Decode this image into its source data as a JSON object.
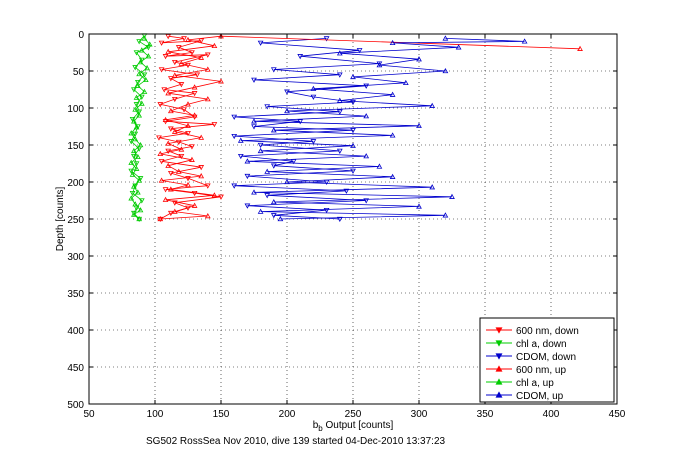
{
  "chart_data": {
    "type": "scatter",
    "title": "",
    "xlabel_main": "b",
    "xlabel_sub": "b",
    "xlabel_rest": " Output [counts]",
    "ylabel": "Depth [counts]",
    "caption": "SG502 RossSea Nov 2010, dive 139 started 04-Dec-2010 13:37:23",
    "xlim": [
      50,
      450
    ],
    "ylim": [
      0,
      500
    ],
    "y_reversed": true,
    "grid": true,
    "legend_position": "bottom-right",
    "xticks": [
      50,
      100,
      150,
      200,
      250,
      300,
      350,
      400,
      450
    ],
    "yticks": [
      0,
      50,
      100,
      150,
      200,
      250,
      300,
      350,
      400,
      450,
      500
    ],
    "xtick_labels": [
      "50",
      "100",
      "150",
      "200",
      "250",
      "300",
      "350",
      "400",
      "450"
    ],
    "ytick_labels": [
      "0",
      "50",
      "100",
      "150",
      "200",
      "250",
      "300",
      "350",
      "400",
      "450",
      "500"
    ],
    "series": [
      {
        "name": "600 nm, down",
        "color": "#ff0000",
        "marker": "triangle-down",
        "connected": true,
        "points": [
          [
            110,
            3
          ],
          [
            122,
            6
          ],
          [
            105,
            12
          ],
          [
            135,
            9
          ],
          [
            118,
            18
          ],
          [
            128,
            25
          ],
          [
            108,
            30
          ],
          [
            140,
            28
          ],
          [
            115,
            38
          ],
          [
            125,
            42
          ],
          [
            105,
            48
          ],
          [
            132,
            55
          ],
          [
            112,
            60
          ],
          [
            120,
            68
          ],
          [
            107,
            75
          ],
          [
            130,
            80
          ],
          [
            115,
            88
          ],
          [
            104,
            95
          ],
          [
            122,
            102
          ],
          [
            130,
            112
          ],
          [
            108,
            118
          ],
          [
            145,
            122
          ],
          [
            112,
            128
          ],
          [
            125,
            134
          ],
          [
            103,
            140
          ],
          [
            118,
            146
          ],
          [
            128,
            152
          ],
          [
            110,
            158
          ],
          [
            120,
            165
          ],
          [
            105,
            172
          ],
          [
            135,
            180
          ],
          [
            112,
            188
          ],
          [
            125,
            195
          ],
          [
            140,
            205
          ],
          [
            108,
            210
          ],
          [
            130,
            215
          ],
          [
            150,
            220
          ],
          [
            115,
            228
          ],
          [
            125,
            235
          ],
          [
            112,
            242
          ],
          [
            104,
            250
          ]
        ]
      },
      {
        "name": "chl a, down",
        "color": "#00cc00",
        "marker": "triangle-down",
        "connected": true,
        "points": [
          [
            92,
            2
          ],
          [
            88,
            10
          ],
          [
            95,
            18
          ],
          [
            86,
            25
          ],
          [
            90,
            35
          ],
          [
            85,
            45
          ],
          [
            92,
            55
          ],
          [
            87,
            65
          ],
          [
            84,
            75
          ],
          [
            90,
            85
          ],
          [
            86,
            95
          ],
          [
            88,
            105
          ],
          [
            83,
            115
          ],
          [
            87,
            125
          ],
          [
            85,
            135
          ],
          [
            82,
            145
          ],
          [
            88,
            155
          ],
          [
            84,
            165
          ],
          [
            86,
            175
          ],
          [
            82,
            185
          ],
          [
            89,
            195
          ],
          [
            85,
            205
          ],
          [
            83,
            215
          ],
          [
            90,
            225
          ],
          [
            86,
            235
          ],
          [
            84,
            242
          ],
          [
            88,
            250
          ]
        ]
      },
      {
        "name": "CDOM, down",
        "color": "#0000cc",
        "marker": "triangle-down",
        "connected": true,
        "points": [
          [
            230,
            6
          ],
          [
            180,
            12
          ],
          [
            255,
            22
          ],
          [
            210,
            30
          ],
          [
            270,
            40
          ],
          [
            190,
            48
          ],
          [
            240,
            55
          ],
          [
            175,
            62
          ],
          [
            260,
            70
          ],
          [
            200,
            78
          ],
          [
            220,
            85
          ],
          [
            250,
            92
          ],
          [
            185,
            98
          ],
          [
            240,
            105
          ],
          [
            160,
            112
          ],
          [
            210,
            118
          ],
          [
            175,
            125
          ],
          [
            250,
            130
          ],
          [
            160,
            138
          ],
          [
            220,
            145
          ],
          [
            180,
            150
          ],
          [
            240,
            158
          ],
          [
            165,
            165
          ],
          [
            205,
            172
          ],
          [
            190,
            178
          ],
          [
            250,
            185
          ],
          [
            170,
            192
          ],
          [
            230,
            200
          ],
          [
            160,
            205
          ],
          [
            245,
            212
          ],
          [
            185,
            218
          ],
          [
            260,
            225
          ],
          [
            170,
            232
          ],
          [
            230,
            238
          ],
          [
            190,
            245
          ],
          [
            240,
            250
          ]
        ]
      },
      {
        "name": "600 nm, up",
        "color": "#ff0000",
        "marker": "triangle-up",
        "connected": true,
        "points": [
          [
            104,
            250
          ],
          [
            140,
            246
          ],
          [
            115,
            240
          ],
          [
            130,
            232
          ],
          [
            108,
            224
          ],
          [
            145,
            218
          ],
          [
            112,
            210
          ],
          [
            125,
            204
          ],
          [
            105,
            198
          ],
          [
            135,
            192
          ],
          [
            118,
            186
          ],
          [
            110,
            178
          ],
          [
            128,
            170
          ],
          [
            104,
            162
          ],
          [
            120,
            156
          ],
          [
            110,
            148
          ],
          [
            135,
            140
          ],
          [
            115,
            132
          ],
          [
            125,
            124
          ],
          [
            108,
            116
          ],
          [
            130,
            110
          ],
          [
            112,
            104
          ],
          [
            125,
            95
          ],
          [
            140,
            88
          ],
          [
            110,
            80
          ],
          [
            130,
            72
          ],
          [
            150,
            64
          ],
          [
            115,
            56
          ],
          [
            140,
            48
          ],
          [
            120,
            40
          ],
          [
            135,
            32
          ],
          [
            110,
            24
          ],
          [
            145,
            16
          ],
          [
            125,
            8
          ],
          [
            150,
            3
          ],
          [
            422,
            20
          ]
        ]
      },
      {
        "name": "chl a, up",
        "color": "#00cc00",
        "marker": "triangle-up",
        "connected": true,
        "points": [
          [
            88,
            250
          ],
          [
            84,
            244
          ],
          [
            89,
            238
          ],
          [
            85,
            230
          ],
          [
            82,
            222
          ],
          [
            87,
            214
          ],
          [
            84,
            206
          ],
          [
            88,
            198
          ],
          [
            83,
            190
          ],
          [
            86,
            182
          ],
          [
            82,
            174
          ],
          [
            87,
            166
          ],
          [
            84,
            158
          ],
          [
            89,
            150
          ],
          [
            85,
            142
          ],
          [
            82,
            134
          ],
          [
            86,
            126
          ],
          [
            84,
            118
          ],
          [
            88,
            110
          ],
          [
            85,
            102
          ],
          [
            90,
            94
          ],
          [
            86,
            86
          ],
          [
            92,
            78
          ],
          [
            87,
            70
          ],
          [
            93,
            62
          ],
          [
            88,
            54
          ],
          [
            94,
            46
          ],
          [
            89,
            38
          ],
          [
            95,
            30
          ],
          [
            90,
            22
          ],
          [
            96,
            14
          ],
          [
            92,
            6
          ]
        ]
      },
      {
        "name": "CDOM, up",
        "color": "#0000cc",
        "marker": "triangle-up",
        "connected": true,
        "points": [
          [
            195,
            250
          ],
          [
            320,
            245
          ],
          [
            180,
            240
          ],
          [
            300,
            233
          ],
          [
            190,
            227
          ],
          [
            325,
            220
          ],
          [
            175,
            214
          ],
          [
            310,
            207
          ],
          [
            200,
            200
          ],
          [
            280,
            193
          ],
          [
            185,
            186
          ],
          [
            270,
            179
          ],
          [
            170,
            172
          ],
          [
            260,
            165
          ],
          [
            180,
            158
          ],
          [
            250,
            151
          ],
          [
            165,
            144
          ],
          [
            280,
            137
          ],
          [
            190,
            130
          ],
          [
            300,
            124
          ],
          [
            175,
            118
          ],
          [
            260,
            111
          ],
          [
            200,
            104
          ],
          [
            310,
            97
          ],
          [
            240,
            90
          ],
          [
            280,
            82
          ],
          [
            220,
            74
          ],
          [
            290,
            66
          ],
          [
            250,
            58
          ],
          [
            320,
            50
          ],
          [
            270,
            42
          ],
          [
            300,
            34
          ],
          [
            240,
            26
          ],
          [
            330,
            18
          ],
          [
            280,
            12
          ],
          [
            380,
            10
          ],
          [
            320,
            6
          ]
        ]
      }
    ]
  }
}
